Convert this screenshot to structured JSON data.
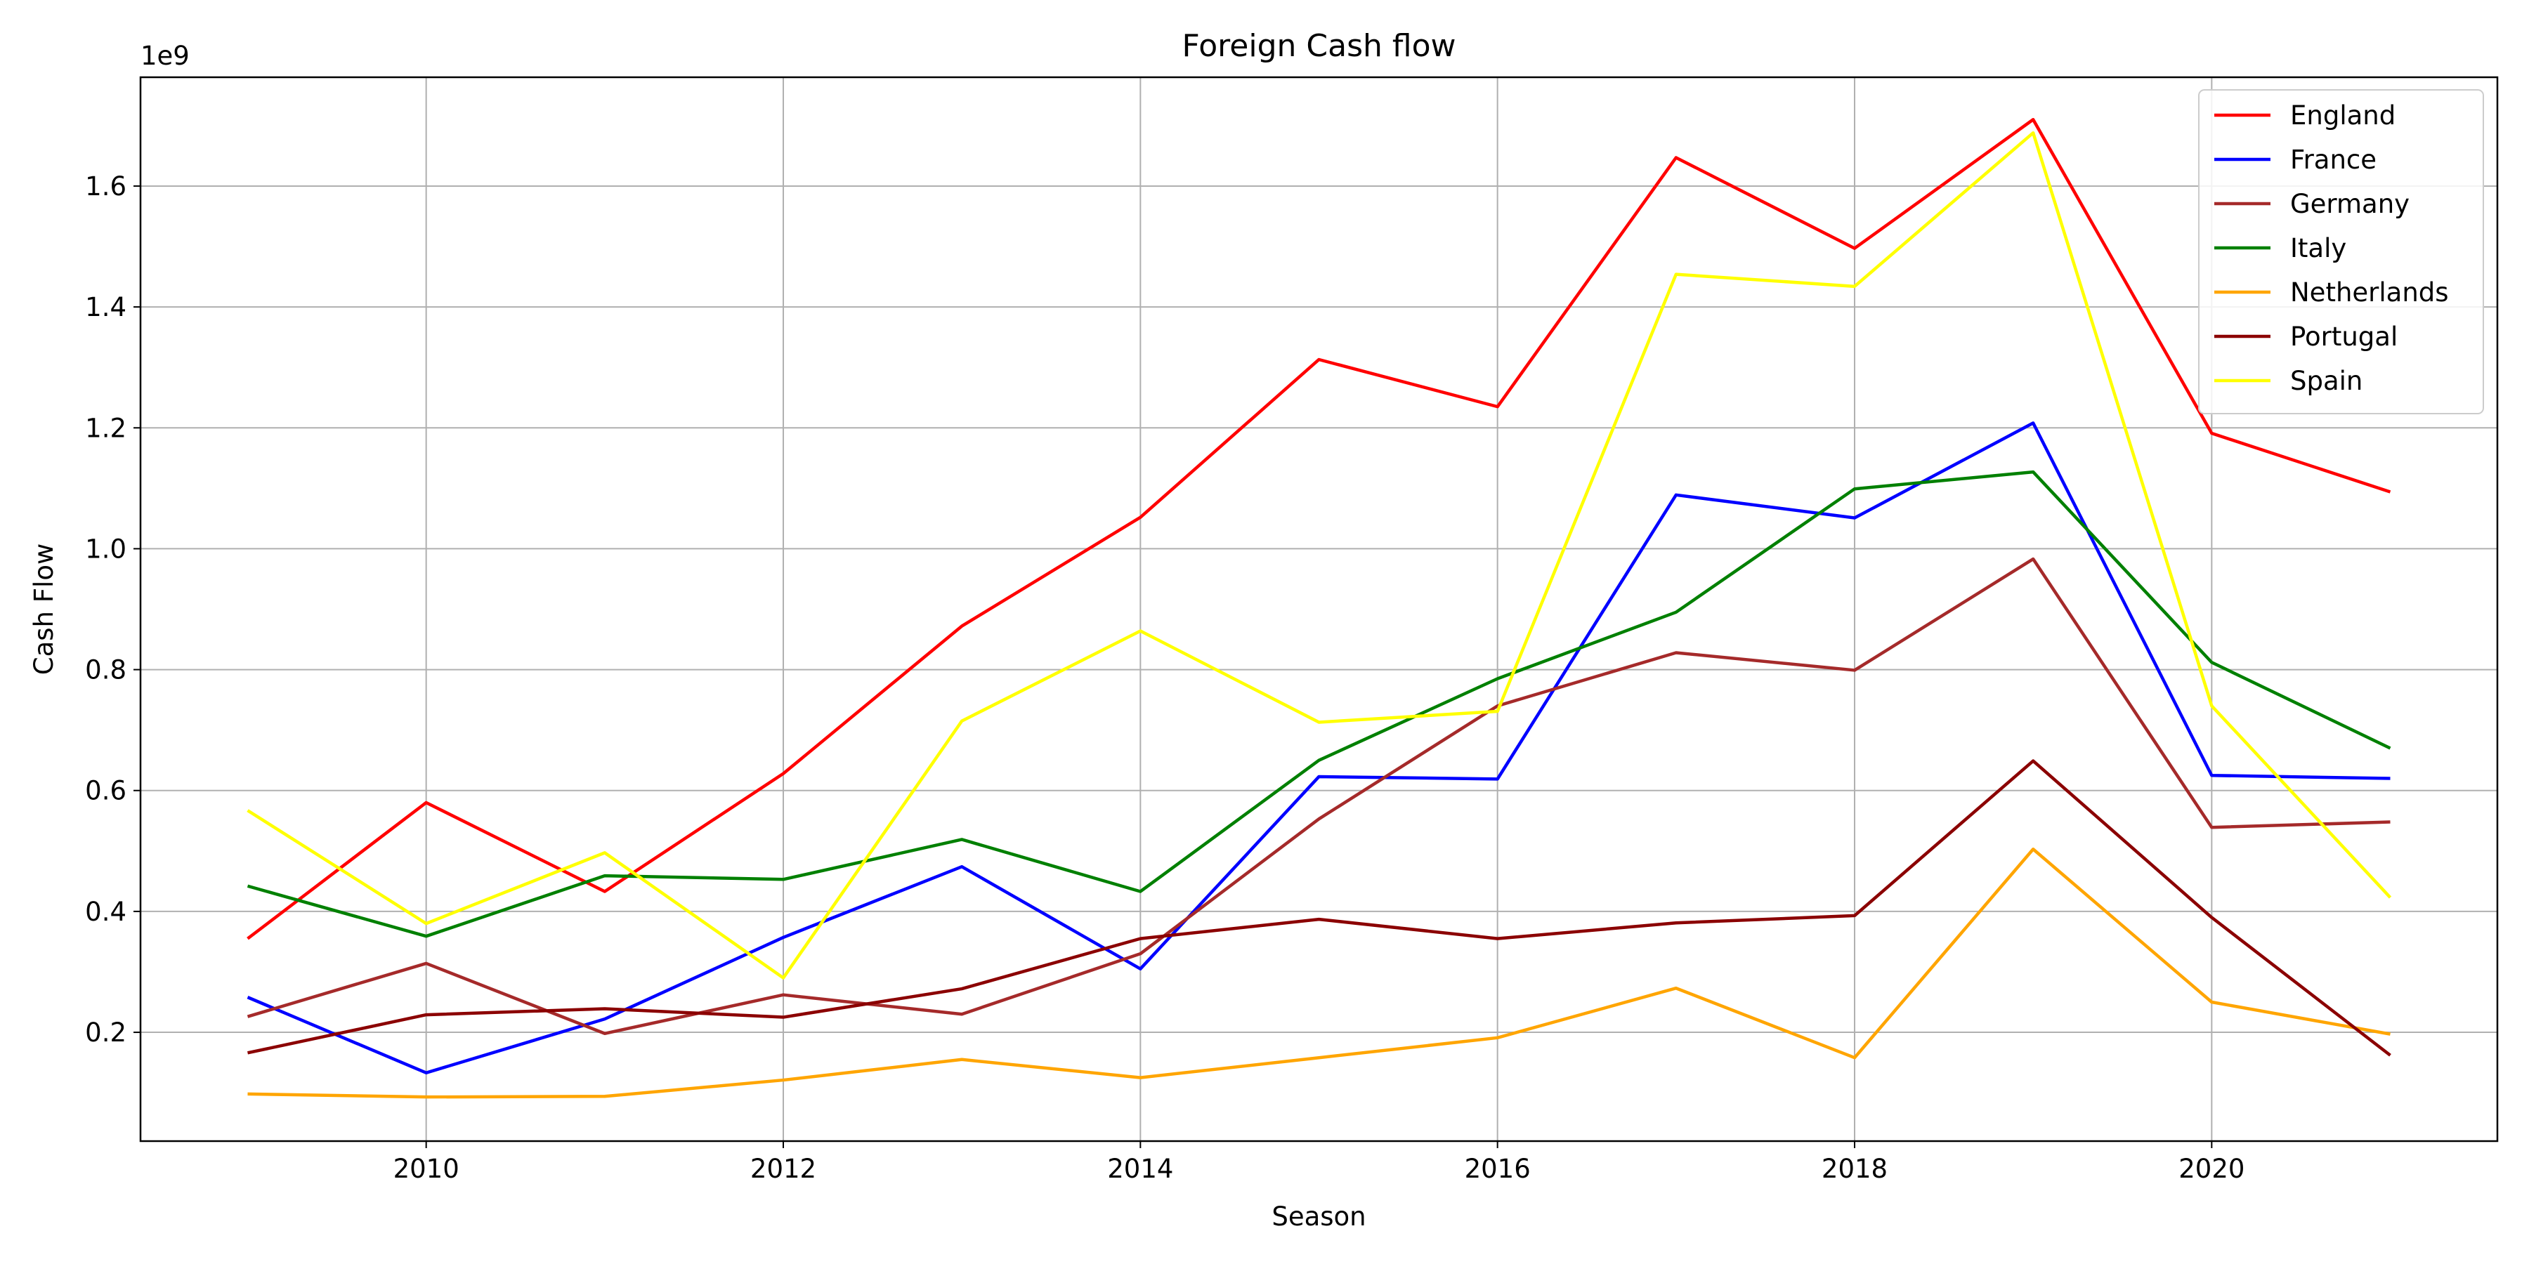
{
  "chart_data": {
    "type": "line",
    "title": "Foreign Cash flow",
    "xlabel": "Season",
    "ylabel": "Cash Flow",
    "y_offset_label": "1e9",
    "x": [
      2009,
      2010,
      2011,
      2012,
      2013,
      2014,
      2015,
      2016,
      2017,
      2018,
      2019,
      2020,
      2021
    ],
    "xlim": [
      2008.4,
      2021.6
    ],
    "ylim": [
      0.02,
      1.78
    ],
    "x_ticks": [
      2010,
      2012,
      2014,
      2016,
      2018,
      2020
    ],
    "y_ticks": [
      0.2,
      0.4,
      0.6,
      0.8,
      1.0,
      1.2,
      1.4,
      1.6
    ],
    "y_tick_labels": [
      "0.2",
      "0.4",
      "0.6",
      "0.8",
      "1.0",
      "1.2",
      "1.4",
      "1.6"
    ],
    "grid": true,
    "legend_position": "top-right",
    "series": [
      {
        "name": "England",
        "color": "#ff0000",
        "values": [
          0.355,
          0.58,
          0.433,
          0.628,
          0.872,
          1.052,
          1.313,
          1.235,
          1.647,
          1.497,
          1.71,
          1.191,
          1.094
        ]
      },
      {
        "name": "France",
        "color": "#0000ff",
        "values": [
          0.258,
          0.133,
          0.222,
          0.357,
          0.474,
          0.305,
          0.623,
          0.619,
          1.089,
          1.051,
          1.208,
          0.625,
          0.62
        ]
      },
      {
        "name": "Germany",
        "color": "#a52a2a",
        "values": [
          0.226,
          0.314,
          0.198,
          0.262,
          0.23,
          0.33,
          0.553,
          0.74,
          0.828,
          0.799,
          0.983,
          0.539,
          0.548
        ]
      },
      {
        "name": "Italy",
        "color": "#008000",
        "values": [
          0.442,
          0.359,
          0.459,
          0.453,
          0.519,
          0.433,
          0.65,
          0.785,
          0.895,
          1.099,
          1.127,
          0.812,
          0.67
        ]
      },
      {
        "name": "Netherlands",
        "color": "#ffa500",
        "values": [
          0.098,
          0.093,
          0.094,
          0.121,
          0.155,
          0.125,
          0.158,
          0.191,
          0.273,
          0.158,
          0.503,
          0.25,
          0.197
        ]
      },
      {
        "name": "Portugal",
        "color": "#8b0000",
        "values": [
          0.166,
          0.229,
          0.239,
          0.225,
          0.272,
          0.355,
          0.387,
          0.355,
          0.381,
          0.393,
          0.649,
          0.39,
          0.162
        ]
      },
      {
        "name": "Spain",
        "color": "#ffff00",
        "values": [
          0.567,
          0.38,
          0.497,
          0.29,
          0.715,
          0.864,
          0.713,
          0.731,
          1.454,
          1.434,
          1.688,
          0.74,
          0.423
        ]
      }
    ]
  }
}
